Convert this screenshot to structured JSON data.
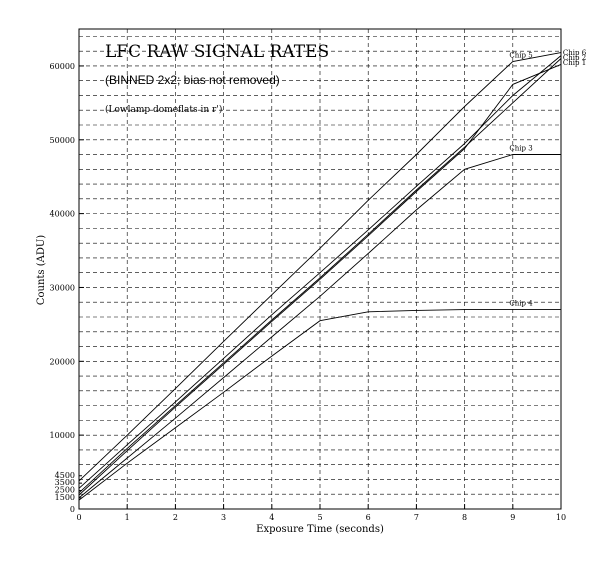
{
  "chart_data": {
    "type": "line",
    "title": "LFC RAW SIGNAL RATES",
    "subtitle": "(BINNED 2x2; bias not removed)",
    "note": "(Lowlamp domeflats in r')",
    "xlabel": "Exposure Time (seconds)",
    "ylabel": "Counts (ADU)",
    "xlim": [
      0,
      10
    ],
    "ylim": [
      0,
      65000
    ],
    "xticks": [
      "0",
      "1",
      "2",
      "3",
      "4",
      "5",
      "6",
      "7",
      "8",
      "9",
      "10"
    ],
    "yticks": [
      "0",
      "10000",
      "20000",
      "30000",
      "40000",
      "50000",
      "60000"
    ],
    "ytick_values": [
      0,
      10000,
      20000,
      30000,
      40000,
      50000,
      60000
    ],
    "small_yticks": [
      "1500",
      "2500",
      "3500",
      "4500"
    ],
    "small_ytick_values": [
      1500,
      2500,
      3500,
      4500
    ],
    "grid": true,
    "x": [
      0,
      1,
      2,
      3,
      4,
      5,
      6,
      7,
      8,
      9,
      10
    ],
    "series": [
      {
        "name": "Chip 5",
        "values": [
          3800,
          10000,
          16300,
          22700,
          29000,
          35300,
          41800,
          48000,
          54500,
          60600,
          61800
        ]
      },
      {
        "name": "Chip 6",
        "values": [
          2800,
          8700,
          14500,
          20400,
          26300,
          32000,
          37800,
          43700,
          49500,
          56000,
          61400
        ]
      },
      {
        "name": "Chip 2",
        "values": [
          2200,
          8200,
          14000,
          19800,
          25600,
          31300,
          37200,
          43200,
          49000,
          55000,
          61000
        ]
      },
      {
        "name": "Chip 1",
        "values": [
          1900,
          7900,
          13800,
          19600,
          25400,
          31100,
          37000,
          43000,
          48800,
          57500,
          60200
        ]
      },
      {
        "name": "Chip 3",
        "values": [
          1500,
          6900,
          12300,
          17800,
          23300,
          28800,
          34600,
          40500,
          46000,
          48000,
          48000
        ]
      },
      {
        "name": "Chip 4",
        "values": [
          1200,
          6200,
          11000,
          15800,
          20700,
          25500,
          26700,
          26900,
          27000,
          27000,
          27000
        ]
      }
    ]
  }
}
